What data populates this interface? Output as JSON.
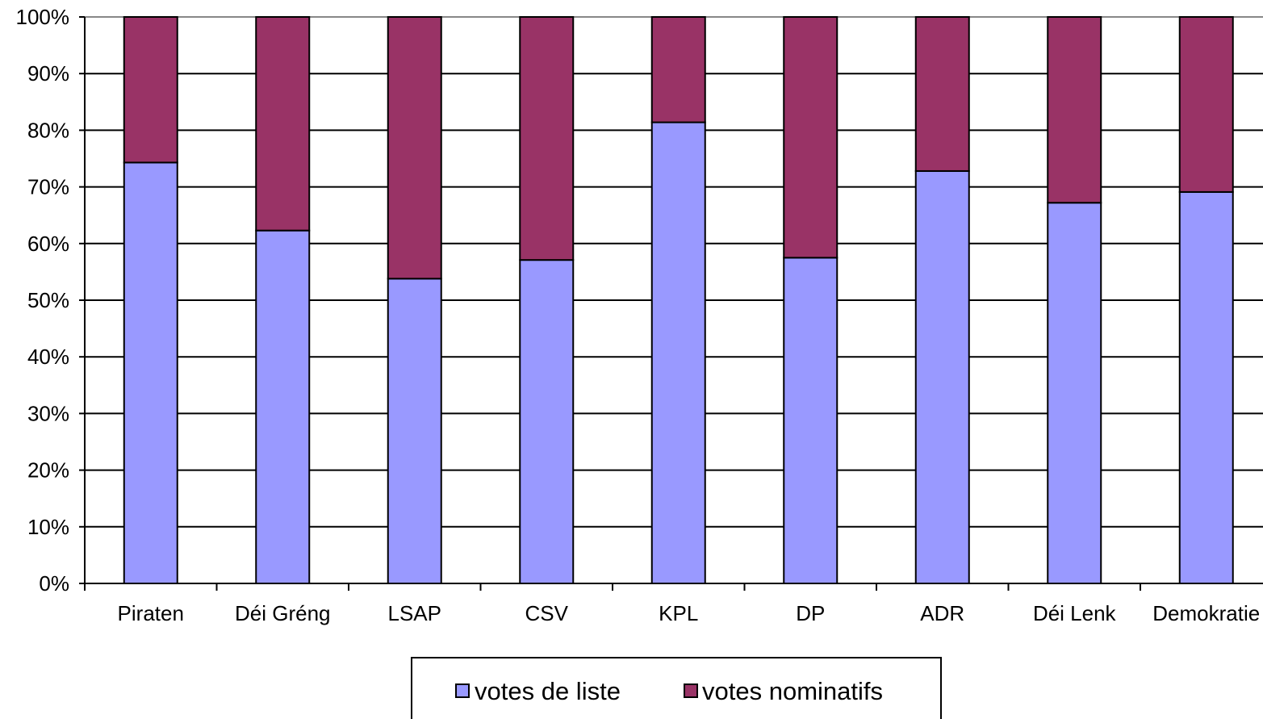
{
  "chart_data": {
    "type": "bar",
    "stacked": true,
    "percent": true,
    "categories": [
      "Piraten",
      "Déi Gréng",
      "LSAP",
      "CSV",
      "KPL",
      "DP",
      "ADR",
      "Déi Lenk",
      "Demokratie"
    ],
    "series": [
      {
        "name": "votes de liste",
        "color": "#9999ff",
        "values": [
          74.3,
          62.3,
          53.8,
          57.1,
          81.4,
          57.5,
          72.8,
          67.2,
          69.1
        ]
      },
      {
        "name": "votes nominatifs",
        "color": "#993366",
        "values": [
          25.7,
          37.7,
          46.2,
          42.9,
          18.6,
          42.5,
          27.2,
          32.8,
          30.9
        ]
      }
    ],
    "y_ticks": [
      "0%",
      "10%",
      "20%",
      "30%",
      "40%",
      "50%",
      "60%",
      "70%",
      "80%",
      "90%",
      "100%"
    ],
    "ylim": [
      0,
      100
    ],
    "grid": true,
    "legend_position": "bottom",
    "title": "",
    "xlabel": "",
    "ylabel": ""
  }
}
